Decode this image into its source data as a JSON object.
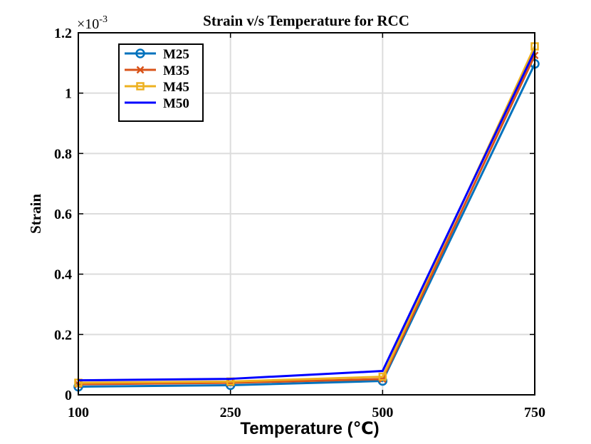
{
  "chart_data": {
    "type": "line",
    "title": "Strain v/s Temperature for RCC",
    "xlabel": "Temperature (℃)",
    "ylabel": "Strain",
    "exponent_label": "×10",
    "exponent_power": "-3",
    "categories": [
      "100",
      "250",
      "500",
      "750"
    ],
    "ylim": [
      0,
      1.2
    ],
    "yticks": [
      "0",
      "0.2",
      "0.4",
      "0.6",
      "0.8",
      "1",
      "1.2"
    ],
    "ytick_values": [
      0,
      0.2,
      0.4,
      0.6,
      0.8,
      1.0,
      1.2
    ],
    "grid": true,
    "legend_position": "top-left",
    "series": [
      {
        "name": "M25",
        "color": "#0072BD",
        "marker": "circle",
        "values": [
          0.027,
          0.032,
          0.046,
          1.097
        ]
      },
      {
        "name": "M35",
        "color": "#D95319",
        "marker": "x",
        "values": [
          0.035,
          0.04,
          0.052,
          1.125
        ]
      },
      {
        "name": "M45",
        "color": "#EDB120",
        "marker": "square",
        "values": [
          0.04,
          0.044,
          0.06,
          1.155
        ]
      },
      {
        "name": "M50",
        "color": "#0000FF",
        "marker": "none",
        "values": [
          0.048,
          0.053,
          0.079,
          1.14
        ]
      }
    ]
  }
}
